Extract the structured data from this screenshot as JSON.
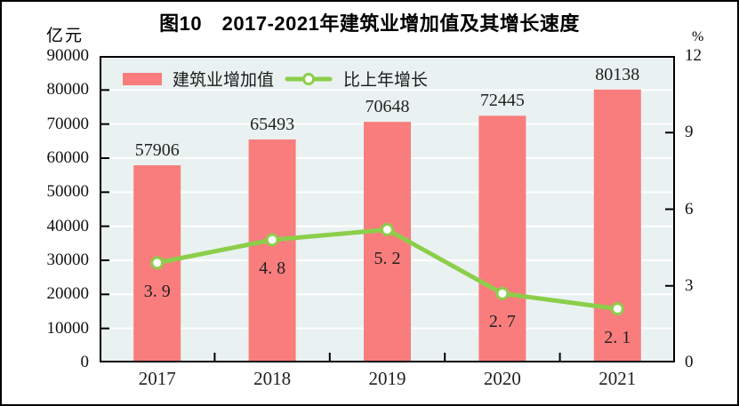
{
  "figure": {
    "title": "图10　2017-2021年建筑业增加值及其增长速度",
    "left_axis_unit": "亿元",
    "right_axis_unit": "%"
  },
  "legend": [
    {
      "label": "建筑业增加值",
      "swatch": "bar-swatch",
      "color": "#F97D7D"
    },
    {
      "label": "比上年增长",
      "swatch": "line-marker-swatch",
      "color": "#8CCE4A"
    }
  ],
  "colors": {
    "bar": "#F97D7D",
    "line": "#8CCE4A",
    "marker_fill": "#FFFFFF",
    "plot_background": "#E9F2F1",
    "gridline": "#FFFFFF",
    "axis": "#000000",
    "text": "#1A1A1A"
  },
  "chart_data": {
    "type": "bar",
    "combo": "bar+line",
    "title": "图10　2017-2021年建筑业增加值及其增长速度",
    "categories": [
      "2017",
      "2018",
      "2019",
      "2020",
      "2021"
    ],
    "series": [
      {
        "name": "建筑业增加值",
        "type": "bar",
        "axis": "left",
        "values": [
          57906,
          65493,
          70648,
          72445,
          80138
        ],
        "labels": [
          "57906",
          "65493",
          "70648",
          "72445",
          "80138"
        ]
      },
      {
        "name": "比上年增长",
        "type": "line",
        "axis": "right",
        "values": [
          3.9,
          4.8,
          5.2,
          2.7,
          2.1
        ],
        "labels": [
          "3. 9",
          "4. 8",
          "5. 2",
          "2. 7",
          "2. 1"
        ]
      }
    ],
    "left_axis": {
      "unit": "亿元",
      "min": 0,
      "max": 90000,
      "step": 10000,
      "tick_labels": [
        "0",
        "10000",
        "20000",
        "30000",
        "40000",
        "50000",
        "60000",
        "70000",
        "80000",
        "90000"
      ]
    },
    "right_axis": {
      "unit": "%",
      "min": 0,
      "max": 12,
      "step": 3,
      "tick_labels": [
        "0",
        "3",
        "6",
        "9",
        "12"
      ],
      "inner_tick_values": [
        3,
        6,
        9
      ]
    },
    "grid": true,
    "legend_position": "top-left-inside",
    "xlabel": "",
    "ylabel": "亿元",
    "y2label": "%"
  }
}
